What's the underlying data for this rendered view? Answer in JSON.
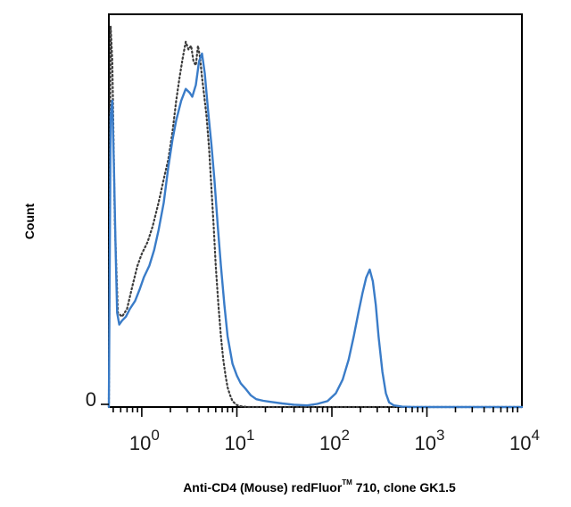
{
  "chart_data": {
    "type": "line",
    "title": "",
    "xlabel_parts": {
      "pre": "Anti-CD4 (Mouse) redFluor",
      "sup": "TM",
      "post": " 710, clone GK1.5"
    },
    "ylabel": "Count",
    "x_scale": "log",
    "x_ticks": [
      {
        "base": "10",
        "exp": "0",
        "value": 1
      },
      {
        "base": "10",
        "exp": "1",
        "value": 10
      },
      {
        "base": "10",
        "exp": "2",
        "value": 100
      },
      {
        "base": "10",
        "exp": "3",
        "value": 1000
      },
      {
        "base": "10",
        "exp": "4",
        "value": 10000
      }
    ],
    "y_ticks": [
      {
        "label": "0",
        "value": 0
      }
    ],
    "xlim": [
      0.45,
      10000
    ],
    "ylim": [
      0,
      100
    ],
    "grid": false,
    "series": [
      {
        "style": "solid",
        "color": "#3a7cc8",
        "x": [
          0.45,
          0.47,
          0.49,
          0.51,
          0.53,
          0.55,
          0.58,
          0.62,
          0.68,
          0.75,
          0.85,
          0.95,
          1.05,
          1.2,
          1.35,
          1.5,
          1.7,
          1.9,
          2.1,
          2.3,
          2.6,
          2.9,
          3.2,
          3.4,
          3.7,
          4.0,
          4.3,
          4.6,
          5.0,
          5.4,
          5.8,
          6.3,
          6.8,
          7.4,
          8.0,
          9.0,
          10.0,
          11.0,
          12.5,
          14.0,
          16.0,
          19.0,
          23.0,
          30.0,
          40.0,
          55.0,
          70.0,
          90.0,
          110.0,
          130.0,
          150.0,
          170.0,
          190.0,
          210.0,
          230.0,
          250.0,
          270.0,
          290.0,
          310.0,
          340.0,
          370.0,
          400.0,
          450.0,
          550.0,
          700.0,
          1000.0,
          2000.0,
          5000.0,
          10000.0
        ],
        "y": [
          0,
          74,
          78,
          60,
          40,
          24,
          21,
          22,
          23,
          25,
          27,
          30,
          33,
          36,
          40,
          45,
          52,
          61,
          68,
          73,
          78,
          81,
          80,
          79,
          82,
          88,
          90,
          85,
          75,
          67,
          58,
          46,
          36,
          26,
          18,
          11,
          8,
          6,
          4.5,
          3,
          2,
          1.6,
          1.3,
          0.9,
          0.6,
          0.4,
          0.8,
          1.5,
          3.5,
          7,
          12,
          18,
          24,
          29,
          33,
          35,
          32,
          26,
          18,
          9,
          3.5,
          1.2,
          0.4,
          0.1,
          0,
          0,
          0,
          0,
          0
        ]
      },
      {
        "style": "dotted",
        "color": "#3c3c3c",
        "x": [
          0.45,
          0.47,
          0.49,
          0.52,
          0.56,
          0.62,
          0.7,
          0.8,
          0.9,
          1.0,
          1.15,
          1.3,
          1.5,
          1.7,
          1.9,
          2.1,
          2.3,
          2.5,
          2.7,
          2.9,
          3.1,
          3.3,
          3.5,
          3.7,
          3.9,
          4.1,
          4.3,
          4.5,
          4.8,
          5.1,
          5.4,
          5.7,
          6.0,
          6.4,
          6.8,
          7.2,
          7.6,
          8.0,
          8.5,
          9.0,
          10.0,
          11.0,
          13.0,
          16.0,
          20.0,
          30.0,
          100.0,
          1000.0,
          10000.0
        ],
        "y": [
          0,
          97,
          88,
          47,
          24,
          23,
          25,
          31,
          36,
          39,
          42,
          46,
          52,
          58,
          63,
          70,
          78,
          84,
          89,
          93,
          91,
          92,
          88,
          87,
          92,
          89,
          84,
          80,
          74,
          66,
          56,
          46,
          36,
          26,
          18,
          12,
          8,
          5,
          3,
          1.5,
          0.5,
          0.2,
          0,
          0,
          0,
          0,
          0,
          0,
          0
        ]
      }
    ]
  }
}
